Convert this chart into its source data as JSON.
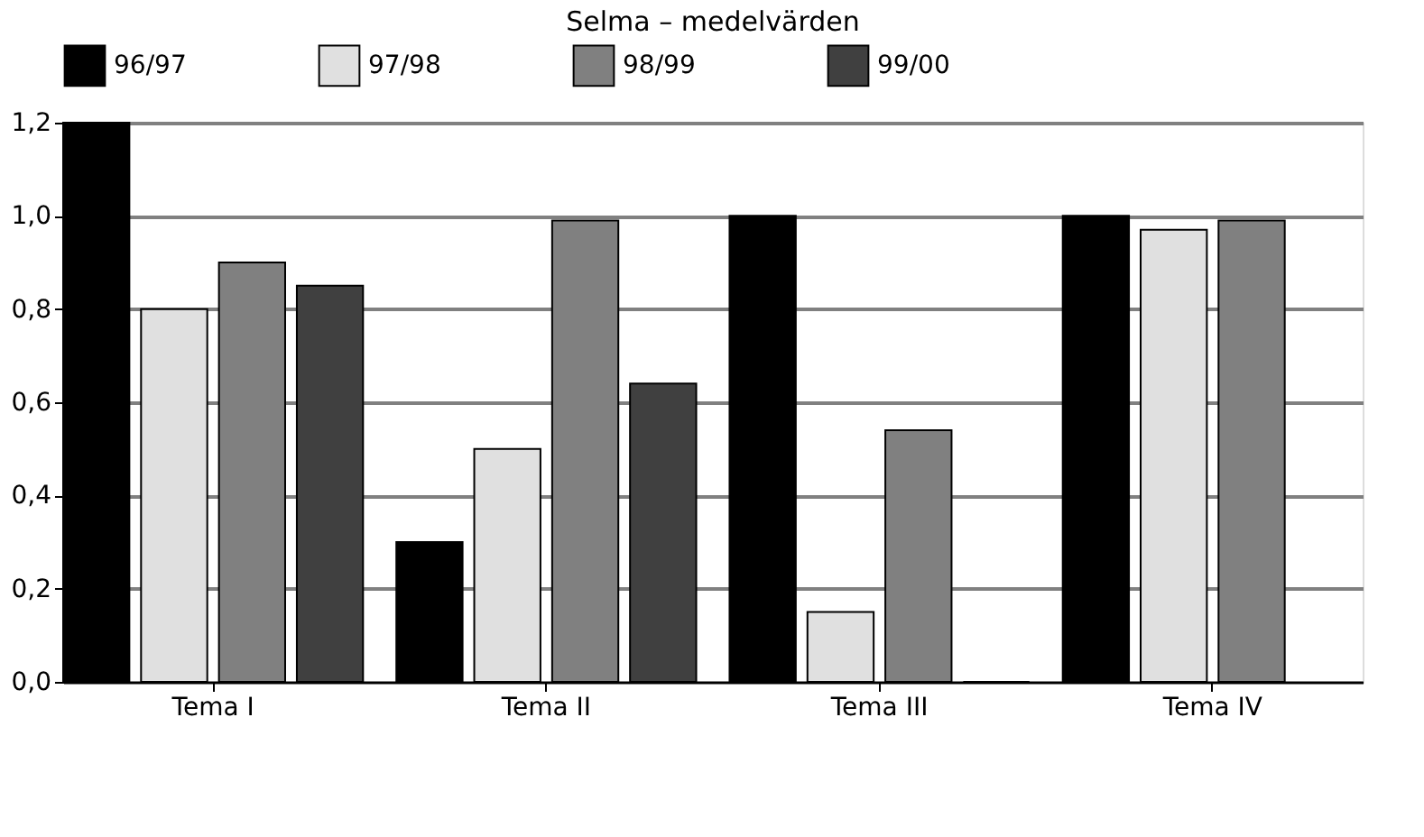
{
  "chart_data": {
    "type": "bar",
    "title": "Selma – medelvärden",
    "categories": [
      "Tema I",
      "Tema II",
      "Tema III",
      "Tema IV"
    ],
    "series": [
      {
        "name": "96/97",
        "color": "#000000",
        "values": [
          1.2,
          0.3,
          1.0,
          1.0
        ]
      },
      {
        "name": "97/98",
        "color": "#e0e0e0",
        "values": [
          0.8,
          0.5,
          0.15,
          0.97
        ]
      },
      {
        "name": "98/99",
        "color": "#808080",
        "values": [
          0.9,
          0.99,
          0.54,
          0.99
        ]
      },
      {
        "name": "99/00",
        "color": "#404040",
        "values": [
          0.85,
          0.64,
          0.0,
          null
        ]
      }
    ],
    "ylim": [
      0,
      1.2
    ],
    "yticks": [
      {
        "value": 0,
        "label": "0,0"
      },
      {
        "value": 0.2,
        "label": "0,2"
      },
      {
        "value": 0.4,
        "label": "0,4"
      },
      {
        "value": 0.6,
        "label": "0,6"
      },
      {
        "value": 0.8,
        "label": "0,8"
      },
      {
        "value": 1.0,
        "label": "1,0"
      },
      {
        "value": 1.2,
        "label": "1,2"
      }
    ],
    "grid": "y",
    "legend": "top"
  }
}
